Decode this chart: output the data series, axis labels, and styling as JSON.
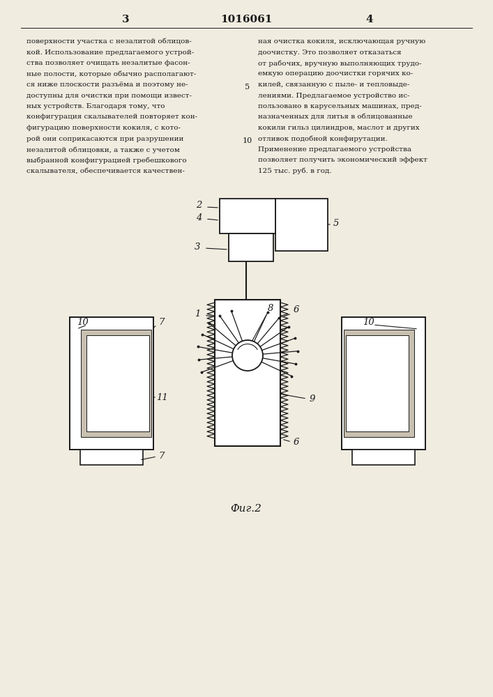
{
  "bg_color": "#f0ece0",
  "line_color": "#1a1a1a",
  "text_color": "#1a1a1a",
  "page_title": "1016061",
  "page_left": "3",
  "page_right": "4",
  "fig_caption": "Фиг.2",
  "left_text_lines": [
    "поверхности участка с незалитой облицов-",
    "кой. Использование предлагаемого устрой-",
    "ства позволяет очищать незалитые фасон-",
    "ные полости, которые обычно располагают-",
    "ся ниже плоскости разъёма и поэтому не-",
    "доступны для очистки при помощи извест-",
    "ных устройств. Благодаря тому, что",
    "конфигурация скалывателей повторяет кон-",
    "фигурацию поверхности кокиля, с кото-",
    "рой они соприкасаются при разрушении",
    "незалитой облицовки, а также с учетом",
    "выбранной конфигурацией гребешкового",
    "скалывателя, обеспечивается качествен-"
  ],
  "right_text_lines": [
    "ная очистка кокиля, исключающая ручную",
    "доочистку. Это позволяет отказаться",
    "от рабочих, вручную выполняющих трудо-",
    "емкую операцию доочистки горячих ко-",
    "килей, связанную с пыле- и тепловыде-",
    "лениями. Предлагаемое устройство ис-",
    "пользовано в карусельных машинах, пред-",
    "назначенных для литья в облицованные",
    "кокили гильз цилиндров, маслот и других",
    "отливок подобной конфирутации.",
    "Применение предлагаемого устройства",
    "позволяет получить экономический эффект",
    "125 тыс. руб. в год."
  ],
  "line_num_5_row": 4,
  "line_num_10_row": 9
}
